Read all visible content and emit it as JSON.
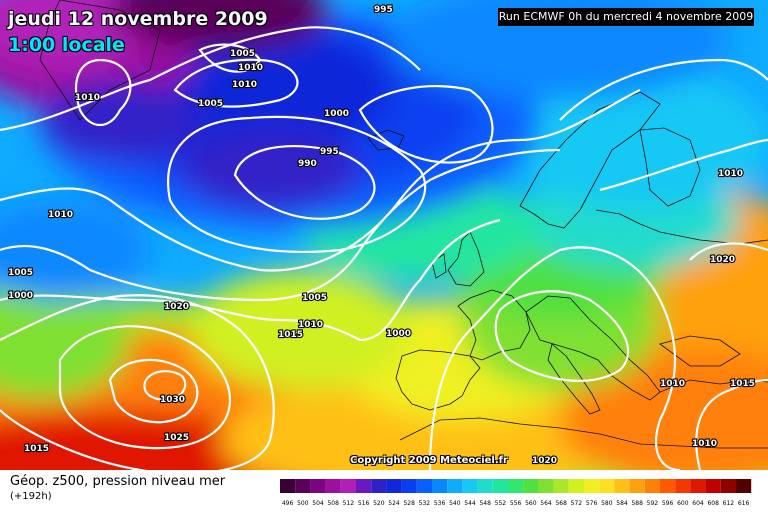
{
  "header": {
    "date_line": "jeudi 12 novembre 2009",
    "time_line": "1:00 locale",
    "run_info": "Run ECMWF 0h du mercredi 4 novembre 2009"
  },
  "copyright": "Copyright 2009 Meteociel.fr",
  "legend": {
    "title": "Géop. z500, pression niveau mer",
    "lead": "(+192h)",
    "ticks": [
      "496",
      "500",
      "504",
      "508",
      "512",
      "516",
      "520",
      "524",
      "528",
      "532",
      "536",
      "540",
      "544",
      "548",
      "552",
      "556",
      "560",
      "564",
      "568",
      "572",
      "576",
      "580",
      "584",
      "588",
      "592",
      "596",
      "600",
      "604",
      "608",
      "612",
      "616"
    ],
    "colors": [
      "#3a0034",
      "#5a0058",
      "#7d0480",
      "#9b10a0",
      "#b020b8",
      "#6a18c0",
      "#3020c8",
      "#1028d8",
      "#0840f0",
      "#0a60ff",
      "#0888ff",
      "#10aaff",
      "#18c8f4",
      "#20dccc",
      "#20e6a0",
      "#30e870",
      "#50e040",
      "#80e030",
      "#a8e828",
      "#d0f020",
      "#f0f020",
      "#ffe020",
      "#ffc018",
      "#ffa010",
      "#ff8008",
      "#ff5a00",
      "#f43800",
      "#e01800",
      "#c00000",
      "#900000",
      "#500000"
    ]
  },
  "isobars": {
    "labels": [
      "995",
      "1005",
      "1010",
      "1010",
      "1010",
      "1005",
      "1000",
      "995",
      "990",
      "1010",
      "1010",
      "1005",
      "1000",
      "1020",
      "1015",
      "1005",
      "1010",
      "1000",
      "1030",
      "1025",
      "1015",
      "1020",
      "1015",
      "1020",
      "1010",
      "1015",
      "1010"
    ]
  },
  "colors": {
    "isobar": "#ffffff",
    "coastline": "#111111",
    "text_outline": "#000000"
  }
}
